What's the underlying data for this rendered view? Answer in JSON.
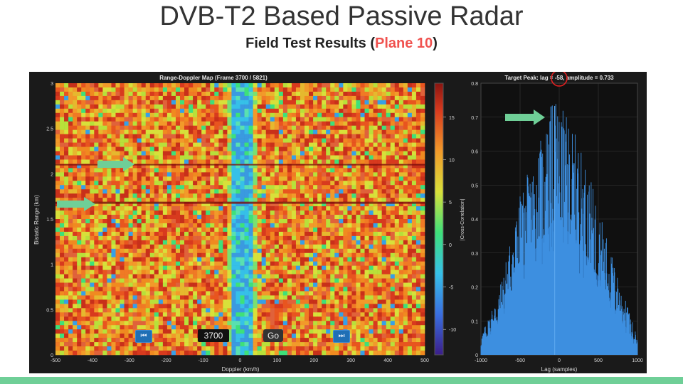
{
  "slide": {
    "title": "DVB-T2 Based Passive Radar",
    "subtitle_prefix": "Field Test Results (",
    "subtitle_accent": "Plane 10",
    "subtitle_suffix": ")",
    "accent_color": "#f0524f",
    "bar_color": "#6fcf97"
  },
  "rd_map": {
    "title": "Range-Doppler Map (Frame 3700 / 5821)",
    "xlabel": "Doppler (km/h)",
    "ylabel": "Bistatic Range (km)",
    "x_ticks": [
      "-500",
      "-400",
      "-300",
      "-200",
      "-100",
      "0",
      "100",
      "200",
      "300",
      "400",
      "500"
    ],
    "y_ticks": [
      "0",
      "0.5",
      "1",
      "1.5",
      "2",
      "2.5",
      "3"
    ],
    "colorbar_ticks": [
      "15",
      "10",
      "5",
      "0",
      "-5",
      "-10"
    ],
    "controls": {
      "prev_icon": "rewind-icon",
      "next_icon": "fast-forward-icon",
      "prev_label": "⏮",
      "next_label": "⏭",
      "frame_value": "3700",
      "go_label": "Go"
    }
  },
  "xcorr": {
    "title": "Target Peak: lag = -58, amplitude = 0.733",
    "xlabel": "Lag (samples)",
    "ylabel": "|Cross-Correlation|",
    "x_ticks": [
      "-1000",
      "-500",
      "0",
      "500",
      "1000"
    ],
    "y_ticks": [
      "0",
      "0.1",
      "0.2",
      "0.3",
      "0.4",
      "0.5",
      "0.6",
      "0.7",
      "0.8"
    ],
    "peak_lag": -58,
    "peak_amplitude": 0.733
  },
  "chart_data": [
    {
      "type": "heatmap",
      "title": "Range-Doppler Map (Frame 3700 / 5821)",
      "xlabel": "Doppler (km/h)",
      "ylabel": "Bistatic Range (km)",
      "xlim": [
        -500,
        500
      ],
      "ylim": [
        0,
        3
      ],
      "colorbar_range": [
        -13,
        19
      ],
      "targets": [
        {
          "doppler": -500,
          "range": 1.68
        },
        {
          "doppler": -300,
          "range": 2.1
        }
      ]
    },
    {
      "type": "line",
      "title": "Target Peak: lag = -58, amplitude = 0.733",
      "xlabel": "Lag (samples)",
      "ylabel": "|Cross-Correlation|",
      "xlim": [
        -1000,
        1000
      ],
      "ylim": [
        0,
        0.8
      ],
      "peak": {
        "x": -58,
        "y": 0.733
      },
      "envelope": [
        {
          "x": -1000,
          "y": 0.05
        },
        {
          "x": -750,
          "y": 0.2
        },
        {
          "x": -500,
          "y": 0.45
        },
        {
          "x": -250,
          "y": 0.6
        },
        {
          "x": -58,
          "y": 0.733
        },
        {
          "x": 250,
          "y": 0.6
        },
        {
          "x": 500,
          "y": 0.42
        },
        {
          "x": 750,
          "y": 0.22
        },
        {
          "x": 1000,
          "y": 0.05
        }
      ],
      "grid": true
    }
  ]
}
